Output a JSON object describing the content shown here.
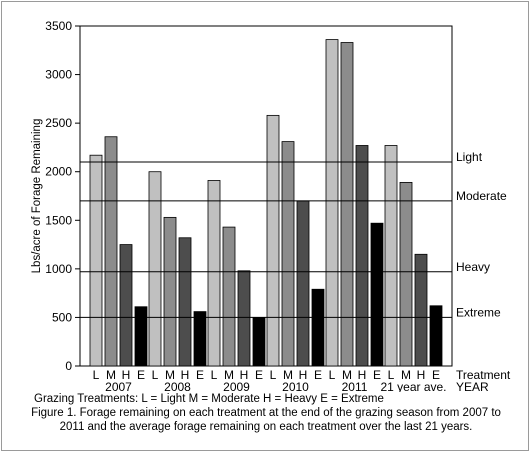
{
  "chart_data": {
    "type": "bar",
    "ylabel": "Lbs/acre of Forage Remaining",
    "ylim": [
      0,
      3500
    ],
    "yticks": [
      0,
      500,
      1000,
      1500,
      2000,
      2500,
      3000,
      3500
    ],
    "treatment_label": "Treatment",
    "year_label": "YEAR",
    "treatments": [
      "L",
      "M",
      "H",
      "E"
    ],
    "series_colors": [
      "#c0c0c0",
      "#8c8c8c",
      "#4d4d4d",
      "#000000"
    ],
    "groups": [
      {
        "name": "2007",
        "values": [
          2170,
          2360,
          1250,
          610
        ]
      },
      {
        "name": "2008",
        "values": [
          2000,
          1530,
          1320,
          560
        ]
      },
      {
        "name": "2009",
        "values": [
          1910,
          1430,
          980,
          500
        ]
      },
      {
        "name": "2010",
        "values": [
          2580,
          2310,
          1700,
          790
        ]
      },
      {
        "name": "2011",
        "values": [
          3360,
          3330,
          2270,
          1470
        ]
      },
      {
        "name": "21 year ave.",
        "values": [
          2270,
          1890,
          1150,
          620
        ]
      }
    ],
    "reference_lines": [
      {
        "name": "Light",
        "value": 2100
      },
      {
        "name": "Moderate",
        "value": 1700
      },
      {
        "name": "Heavy",
        "value": 970
      },
      {
        "name": "Extreme",
        "value": 500
      }
    ],
    "grid": false
  },
  "legend_text": "Grazing Treatments:  L = Light  M = Moderate  H = Heavy  E = Extreme",
  "caption_line1": "Figure 1. Forage remaining on each treatment at the end of the grazing season from 2007 to",
  "caption_line2": "2011 and the average forage remaining on each treatment over the last 21 years."
}
